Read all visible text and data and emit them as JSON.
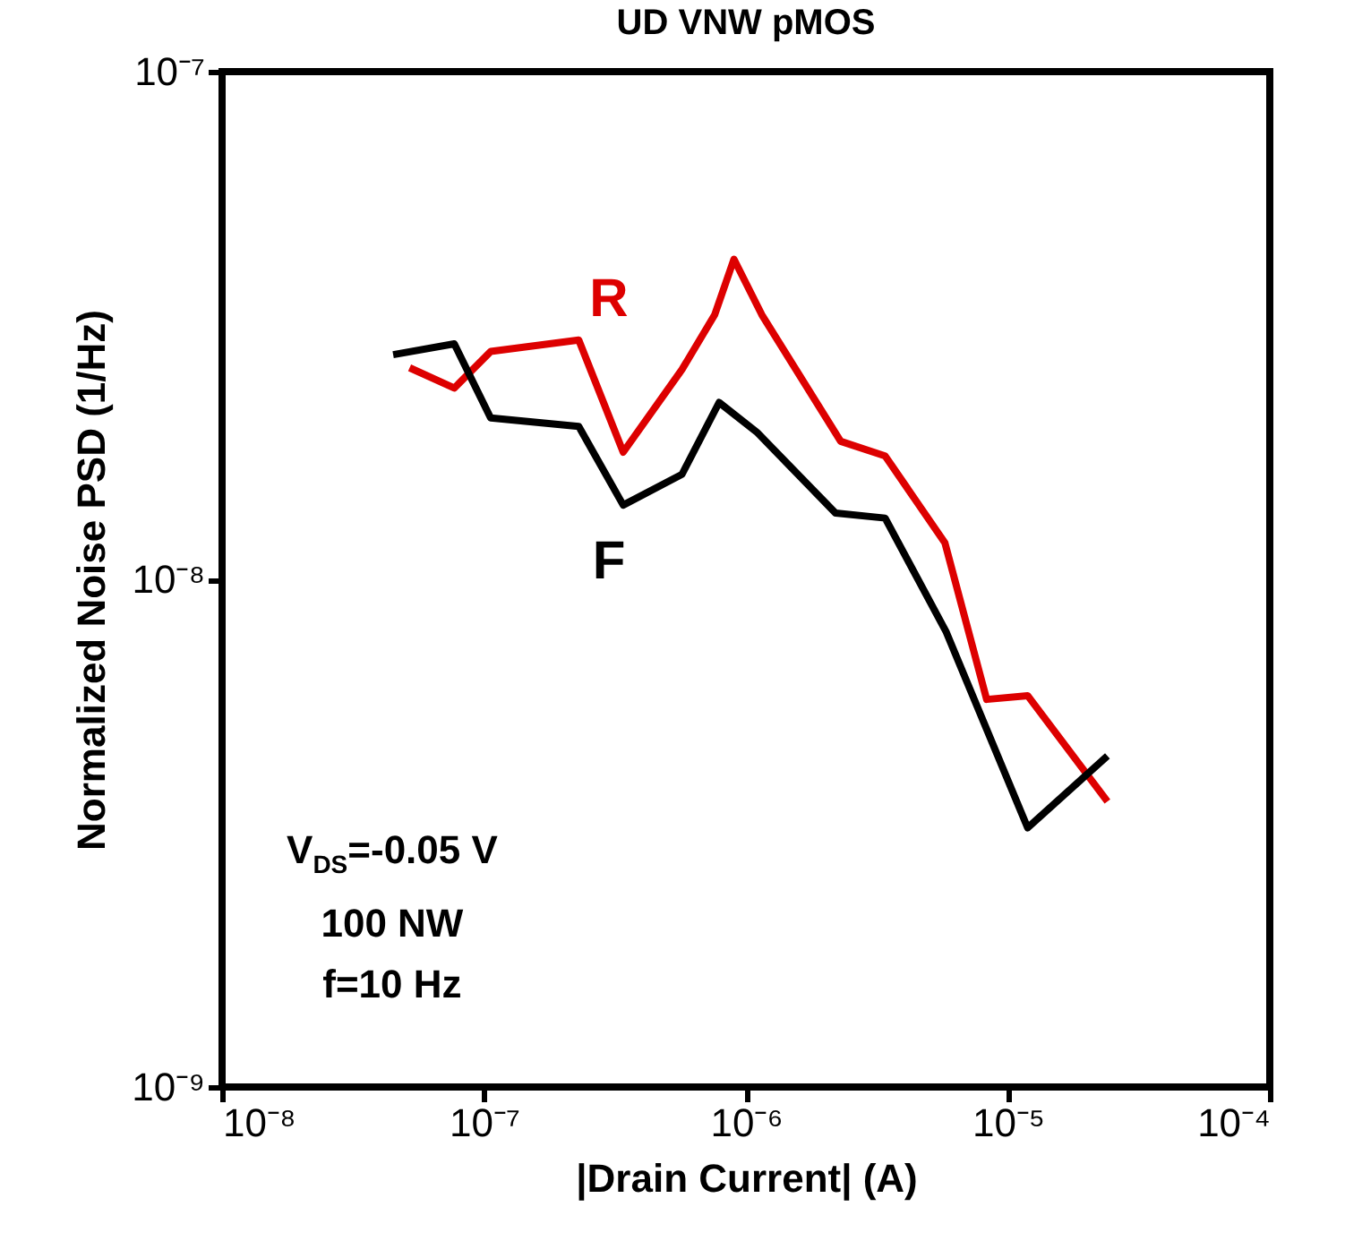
{
  "chart_data": {
    "type": "line",
    "title": "UD VNW pMOS",
    "xlabel": "|Drain Current| (A)",
    "ylabel": "Normalized Noise PSD (1/Hz)",
    "log": "xy",
    "grid": false,
    "xlim": [
      1e-08,
      0.0001
    ],
    "ylim": [
      1e-09,
      1e-07
    ],
    "xticks": [
      {
        "value": 1e-08,
        "label": "10⁻⁸"
      },
      {
        "value": 1e-07,
        "label": "10⁻⁷"
      },
      {
        "value": 1e-06,
        "label": "10⁻⁶"
      },
      {
        "value": 1e-05,
        "label": "10⁻⁵"
      },
      {
        "value": 0.0001,
        "label": "10⁻⁴"
      }
    ],
    "yticks": [
      {
        "value": 1e-09,
        "label": "10⁻⁹"
      },
      {
        "value": 1e-08,
        "label": "10⁻⁸"
      },
      {
        "value": 1e-07,
        "label": "10⁻⁷"
      }
    ],
    "series": [
      {
        "name": "R",
        "color": "#dd0000",
        "x": [
          5.2e-08,
          7.7e-08,
          1.06e-07,
          2.3e-07,
          3.4e-07,
          5.7e-07,
          7.6e-07,
          9e-07,
          1.15e-06,
          2.3e-06,
          3.4e-06,
          5.75e-06,
          8.3e-06,
          1.19e-05,
          2.4e-05
        ],
        "values": [
          2.61e-08,
          2.38e-08,
          2.81e-08,
          2.96e-08,
          1.78e-08,
          2.59e-08,
          3.32e-08,
          4.27e-08,
          3.32e-08,
          1.87e-08,
          1.75e-08,
          1.18e-08,
          5.8e-09,
          5.9e-09,
          3.65e-09
        ]
      },
      {
        "name": "F",
        "color": "#000000",
        "x": [
          4.5e-08,
          7.7e-08,
          1.06e-07,
          2.3e-07,
          3.4e-07,
          5.7e-07,
          7.9e-07,
          1.1e-06,
          2.2e-06,
          3.4e-06,
          5.8e-06,
          1.19e-05,
          2.4e-05
        ],
        "values": [
          2.77e-08,
          2.91e-08,
          2.08e-08,
          2e-08,
          1.4e-08,
          1.61e-08,
          2.23e-08,
          1.95e-08,
          1.35e-08,
          1.32e-08,
          7.9e-09,
          3.24e-09,
          4.49e-09
        ]
      }
    ],
    "annotations": [
      "V$_{DS}$=-0.05 V",
      "100 NW",
      "f=10 Hz"
    ]
  }
}
